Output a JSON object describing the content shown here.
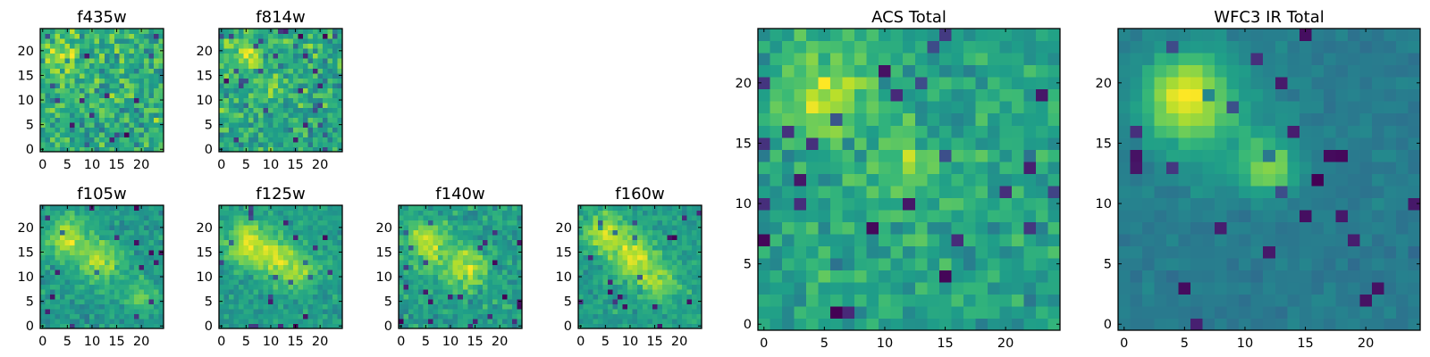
{
  "chart_data": [
    {
      "type": "heatmap",
      "title": "f435w",
      "grid_size": 25,
      "xticks": [
        0,
        5,
        10,
        15,
        20
      ],
      "yticks": [
        0,
        5,
        10,
        15,
        20
      ],
      "colormap": "viridis",
      "xlim": [
        -0.5,
        24.5
      ],
      "ylim": [
        -0.5,
        24.5
      ],
      "features": [
        [
          4,
          19,
          2.5,
          0.5
        ]
      ],
      "noise": 0.45,
      "min_range": 1.6,
      "seed": 11
    },
    {
      "type": "heatmap",
      "title": "f814w",
      "grid_size": 25,
      "xticks": [
        0,
        5,
        10,
        15,
        20
      ],
      "yticks": [
        0,
        5,
        10,
        15,
        20
      ],
      "colormap": "viridis",
      "xlim": [
        -0.5,
        24.5
      ],
      "ylim": [
        -0.5,
        24.5
      ],
      "features": [
        [
          5,
          19,
          2.5,
          0.55
        ],
        [
          11,
          13,
          2.0,
          0.35
        ]
      ],
      "noise": 0.4,
      "min_range": 1.6,
      "seed": 23
    },
    {
      "type": "heatmap",
      "title": "f105w",
      "grid_size": 25,
      "xticks": [
        0,
        5,
        10,
        15,
        20
      ],
      "yticks": [
        0,
        5,
        10,
        15,
        20
      ],
      "colormap": "viridis",
      "xlim": [
        -0.5,
        24.5
      ],
      "ylim": [
        -0.5,
        24.5
      ],
      "features": [
        [
          5,
          18,
          3.0,
          0.7
        ],
        [
          12,
          13,
          3.0,
          0.6
        ],
        [
          20,
          6,
          2.5,
          0.4
        ]
      ],
      "noise": 0.22,
      "min_range": 1.4,
      "seed": 31
    },
    {
      "type": "heatmap",
      "title": "f125w",
      "grid_size": 25,
      "xticks": [
        0,
        5,
        10,
        15,
        20
      ],
      "yticks": [
        0,
        5,
        10,
        15,
        20
      ],
      "colormap": "viridis",
      "xlim": [
        -0.5,
        24.5
      ],
      "ylim": [
        -0.5,
        24.5
      ],
      "features": [
        [
          5,
          17,
          3.0,
          0.75
        ],
        [
          11,
          14,
          3.0,
          0.6
        ],
        [
          16,
          11,
          2.5,
          0.5
        ]
      ],
      "noise": 0.22,
      "min_range": 1.4,
      "seed": 47
    },
    {
      "type": "heatmap",
      "title": "f140w",
      "grid_size": 25,
      "xticks": [
        0,
        5,
        10,
        15,
        20
      ],
      "yticks": [
        0,
        5,
        10,
        15,
        20
      ],
      "colormap": "viridis",
      "xlim": [
        -0.5,
        24.5
      ],
      "ylim": [
        -0.5,
        24.5
      ],
      "features": [
        [
          5,
          17,
          3.0,
          0.7
        ],
        [
          13,
          12,
          3.0,
          0.65
        ]
      ],
      "noise": 0.25,
      "min_range": 1.4,
      "seed": 53
    },
    {
      "type": "heatmap",
      "title": "f160w",
      "grid_size": 25,
      "xticks": [
        0,
        5,
        10,
        15,
        20
      ],
      "yticks": [
        0,
        5,
        10,
        15,
        20
      ],
      "colormap": "viridis",
      "xlim": [
        -0.5,
        24.5
      ],
      "ylim": [
        -0.5,
        24.5
      ],
      "features": [
        [
          5,
          19,
          3.0,
          0.7
        ],
        [
          11,
          14,
          3.0,
          0.7
        ],
        [
          16,
          9,
          3.0,
          0.5
        ]
      ],
      "noise": 0.22,
      "min_range": 1.4,
      "seed": 67
    },
    {
      "type": "heatmap",
      "title": "ACS Total",
      "grid_size": 25,
      "xticks": [
        0,
        5,
        10,
        15,
        20
      ],
      "yticks": [
        0,
        5,
        10,
        15,
        20
      ],
      "colormap": "viridis",
      "xlim": [
        -0.5,
        24.5
      ],
      "ylim": [
        -0.5,
        24.5
      ],
      "features": [
        [
          5,
          19,
          2.5,
          0.6
        ],
        [
          12,
          13,
          2.0,
          0.45
        ]
      ],
      "noise": 0.28,
      "min_range": 1.5,
      "seed": 79
    },
    {
      "type": "heatmap",
      "title": "WFC3 IR Total",
      "grid_size": 25,
      "xticks": [
        0,
        5,
        10,
        15,
        20
      ],
      "yticks": [
        0,
        5,
        10,
        15,
        20
      ],
      "colormap": "viridis",
      "xlim": [
        -0.5,
        24.5
      ],
      "ylim": [
        -0.5,
        24.5
      ],
      "features": [
        [
          5,
          19,
          2.5,
          1.2
        ],
        [
          12,
          13,
          1.6,
          0.9
        ],
        [
          8,
          16,
          3.5,
          0.35
        ]
      ],
      "noise": 0.13,
      "min_range": 1.4,
      "seed": 97
    }
  ]
}
